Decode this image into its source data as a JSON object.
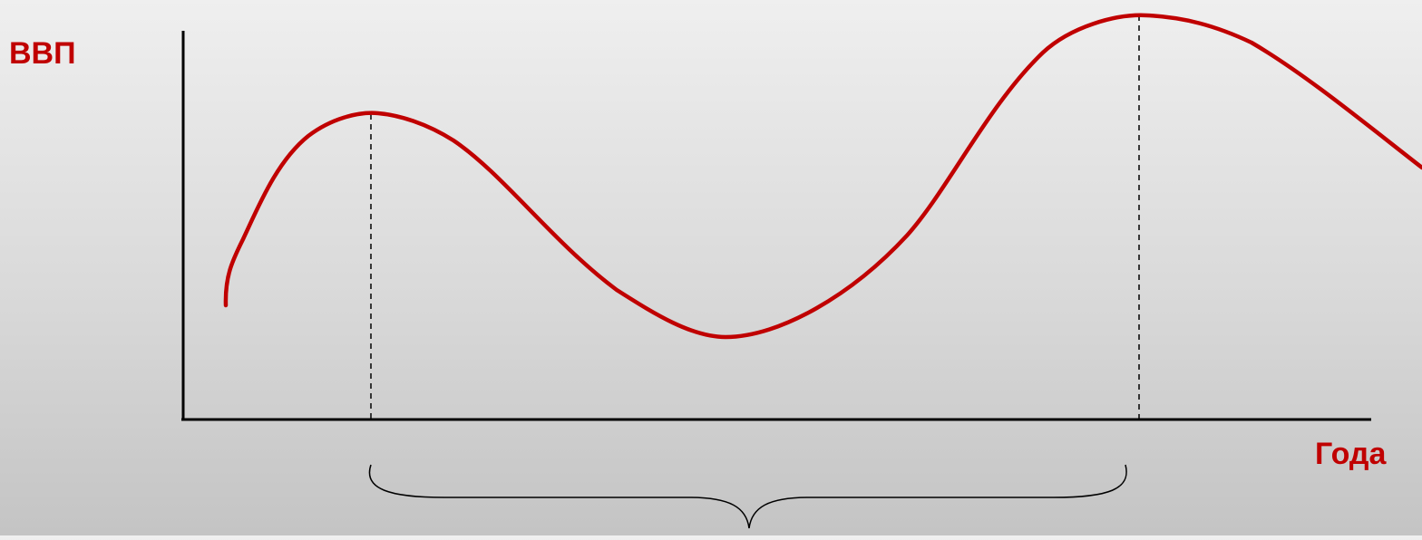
{
  "diagram": {
    "y_axis_label": "ВВП",
    "x_axis_label": "Года",
    "curve_color": "#c00000",
    "label_color": "#c00000",
    "axis_color": "#000000"
  }
}
